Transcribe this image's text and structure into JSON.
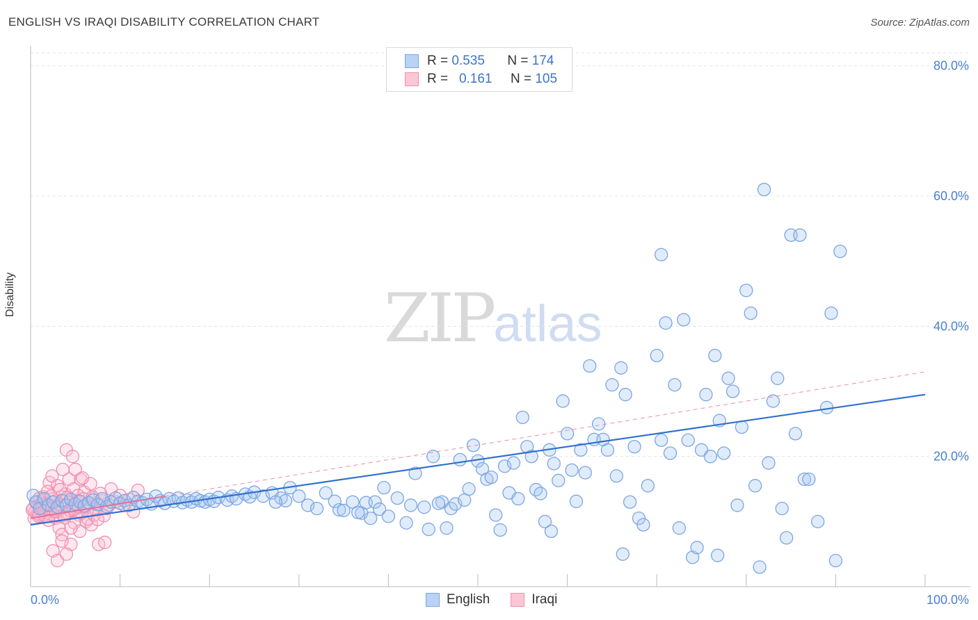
{
  "title": "ENGLISH VS IRAQI DISABILITY CORRELATION CHART",
  "source": "Source: ZipAtlas.com",
  "watermark": {
    "zip": "ZIP",
    "atlas": "atlas"
  },
  "legend_top": {
    "rows": [
      {
        "r_label": "R =",
        "r_value": "0.535",
        "n_label": "N =",
        "n_value": "174"
      },
      {
        "r_label": "R =",
        "r_value": "0.161",
        "n_label": "N =",
        "n_value": "105"
      }
    ]
  },
  "chart_data": {
    "type": "scatter",
    "title": "ENGLISH VS IRAQI DISABILITY CORRELATION CHART",
    "xlabel": "",
    "ylabel": "Disability",
    "xlim": [
      0,
      100
    ],
    "ylim": [
      0,
      82
    ],
    "x_tick_labels": [
      "0.0%",
      "100.0%"
    ],
    "y_ticks": [
      20,
      40,
      60,
      80
    ],
    "y_tick_labels": [
      "20.0%",
      "40.0%",
      "60.0%",
      "80.0%"
    ],
    "grid": "horizontal dashed",
    "legend_placement": "bottom-center",
    "colors": {
      "English": "#7aa5e3",
      "Iraqi": "#ef8fb0",
      "english_line": "#2f6fce",
      "iraqi_line": "#e4709a"
    },
    "series": [
      {
        "name": "English",
        "r": 0.535,
        "n": 174,
        "trend": {
          "x": [
            0,
            100
          ],
          "y": [
            9.5,
            29.5
          ]
        },
        "points": [
          [
            0.3,
            14
          ],
          [
            0.6,
            13
          ],
          [
            1.0,
            12
          ],
          [
            1.5,
            13.5
          ],
          [
            2.0,
            12.5
          ],
          [
            2.5,
            13
          ],
          [
            3.0,
            12.2
          ],
          [
            3.5,
            13.2
          ],
          [
            4.0,
            12.5
          ],
          [
            4.5,
            13.4
          ],
          [
            5.0,
            12.7
          ],
          [
            5.5,
            13.1
          ],
          [
            6.0,
            12.4
          ],
          [
            6.5,
            12.9
          ],
          [
            7.0,
            13.3
          ],
          [
            7.5,
            12.6
          ],
          [
            8.0,
            13.5
          ],
          [
            8.5,
            12.3
          ],
          [
            9.0,
            13.0
          ],
          [
            9.5,
            13.6
          ],
          [
            10.0,
            12.8
          ],
          [
            10.5,
            13.2
          ],
          [
            11.0,
            12.5
          ],
          [
            11.5,
            13.7
          ],
          [
            12.0,
            13.1
          ],
          [
            12.5,
            12.9
          ],
          [
            13.0,
            13.4
          ],
          [
            13.5,
            12.7
          ],
          [
            14.0,
            13.9
          ],
          [
            14.5,
            13.2
          ],
          [
            15.0,
            12.8
          ],
          [
            15.5,
            13.5
          ],
          [
            16.0,
            13.1
          ],
          [
            16.5,
            13.6
          ],
          [
            17.0,
            12.9
          ],
          [
            17.5,
            13.3
          ],
          [
            18.0,
            13.0
          ],
          [
            18.5,
            13.5
          ],
          [
            19.0,
            13.2
          ],
          [
            19.5,
            13.0
          ],
          [
            20.0,
            13.4
          ],
          [
            20.5,
            13.1
          ],
          [
            21.0,
            13.7
          ],
          [
            22.0,
            13.3
          ],
          [
            22.5,
            13.9
          ],
          [
            23.0,
            13.5
          ],
          [
            24.0,
            14.2
          ],
          [
            24.5,
            13.8
          ],
          [
            25.0,
            14.5
          ],
          [
            26.0,
            13.9
          ],
          [
            27.0,
            14.4
          ],
          [
            28.0,
            13.6
          ],
          [
            28.5,
            13.2
          ],
          [
            29.0,
            15.2
          ],
          [
            30.0,
            13.9
          ],
          [
            31.0,
            12.5
          ],
          [
            32.0,
            12.0
          ],
          [
            33.0,
            14.4
          ],
          [
            34.0,
            13.1
          ],
          [
            34.5,
            11.8
          ],
          [
            35.0,
            11.7
          ],
          [
            36.0,
            13.0
          ],
          [
            37.0,
            11.3
          ],
          [
            37.5,
            12.9
          ],
          [
            38.0,
            10.5
          ],
          [
            38.5,
            13.0
          ],
          [
            39.0,
            11.9
          ],
          [
            39.5,
            15.2
          ],
          [
            40.0,
            10.8
          ],
          [
            41.0,
            13.6
          ],
          [
            42.0,
            9.8
          ],
          [
            42.5,
            12.5
          ],
          [
            43.0,
            17.4
          ],
          [
            44.0,
            12.2
          ],
          [
            44.5,
            8.8
          ],
          [
            45.0,
            20.0
          ],
          [
            46.0,
            13.0
          ],
          [
            46.5,
            9.0
          ],
          [
            47.0,
            12.0
          ],
          [
            47.5,
            12.7
          ],
          [
            48.0,
            19.5
          ],
          [
            48.5,
            13.3
          ],
          [
            49.0,
            15.0
          ],
          [
            49.5,
            21.7
          ],
          [
            50.0,
            19.3
          ],
          [
            50.5,
            18.1
          ],
          [
            51.0,
            16.5
          ],
          [
            51.5,
            16.8
          ],
          [
            52.0,
            11.0
          ],
          [
            52.5,
            8.7
          ],
          [
            53.0,
            18.5
          ],
          [
            53.5,
            14.4
          ],
          [
            54.0,
            19.0
          ],
          [
            54.5,
            13.5
          ],
          [
            55.0,
            26.0
          ],
          [
            55.5,
            21.5
          ],
          [
            56.0,
            20.0
          ],
          [
            56.5,
            14.9
          ],
          [
            57.0,
            14.3
          ],
          [
            57.5,
            10.0
          ],
          [
            58.0,
            21.0
          ],
          [
            58.5,
            18.9
          ],
          [
            59.0,
            16.3
          ],
          [
            59.5,
            28.5
          ],
          [
            60.0,
            23.5
          ],
          [
            60.5,
            17.9
          ],
          [
            61.0,
            13.1
          ],
          [
            61.5,
            21.0
          ],
          [
            62.0,
            17.5
          ],
          [
            62.5,
            33.9
          ],
          [
            63.0,
            22.6
          ],
          [
            63.5,
            25.0
          ],
          [
            64.0,
            22.6
          ],
          [
            64.5,
            21.0
          ],
          [
            65.0,
            31.0
          ],
          [
            65.5,
            17.0
          ],
          [
            66.0,
            33.6
          ],
          [
            66.5,
            29.5
          ],
          [
            67.0,
            13.0
          ],
          [
            67.5,
            21.5
          ],
          [
            68.0,
            10.5
          ],
          [
            68.5,
            9.5
          ],
          [
            69.0,
            15.5
          ],
          [
            70.0,
            35.5
          ],
          [
            70.5,
            22.5
          ],
          [
            71.0,
            40.5
          ],
          [
            71.5,
            20.5
          ],
          [
            72.0,
            31.0
          ],
          [
            72.5,
            9.0
          ],
          [
            73.0,
            41.0
          ],
          [
            73.5,
            22.5
          ],
          [
            74.0,
            4.5
          ],
          [
            74.5,
            6.0
          ],
          [
            75.0,
            21.0
          ],
          [
            75.5,
            29.5
          ],
          [
            76.0,
            20.0
          ],
          [
            76.5,
            35.5
          ],
          [
            77.0,
            25.5
          ],
          [
            77.5,
            20.5
          ],
          [
            78.0,
            32.0
          ],
          [
            78.5,
            30.0
          ],
          [
            79.0,
            12.5
          ],
          [
            79.5,
            24.5
          ],
          [
            80.0,
            45.5
          ],
          [
            80.5,
            42.0
          ],
          [
            81.0,
            15.5
          ],
          [
            81.5,
            3.0
          ],
          [
            82.0,
            61.0
          ],
          [
            82.5,
            19.0
          ],
          [
            83.0,
            28.5
          ],
          [
            83.5,
            32.0
          ],
          [
            84.0,
            12.0
          ],
          [
            84.5,
            7.5
          ],
          [
            85.0,
            54.0
          ],
          [
            85.5,
            23.5
          ],
          [
            86.0,
            54.0
          ],
          [
            86.5,
            16.5
          ],
          [
            87.0,
            16.5
          ],
          [
            88.0,
            10.0
          ],
          [
            89.0,
            27.5
          ],
          [
            89.5,
            42.0
          ],
          [
            90.0,
            4.0
          ],
          [
            90.5,
            51.5
          ],
          [
            70.5,
            51.0
          ],
          [
            66.2,
            5.0
          ],
          [
            76.8,
            4.8
          ],
          [
            58.2,
            8.5
          ],
          [
            45.6,
            12.8
          ],
          [
            36.6,
            11.4
          ],
          [
            27.4,
            13.0
          ]
        ]
      },
      {
        "name": "Iraqi",
        "r": 0.161,
        "n": 105,
        "trend": {
          "x": [
            0,
            100
          ],
          "y": [
            10.5,
            33
          ]
        },
        "points": [
          [
            0.3,
            12
          ],
          [
            0.5,
            11.5
          ],
          [
            0.7,
            13
          ],
          [
            0.9,
            12.5
          ],
          [
            1.0,
            11
          ],
          [
            1.2,
            12.8
          ],
          [
            1.3,
            11.8
          ],
          [
            1.5,
            12.2
          ],
          [
            1.6,
            13.3
          ],
          [
            1.8,
            11.4
          ],
          [
            2.0,
            12.6
          ],
          [
            2.1,
            16.0
          ],
          [
            2.3,
            11.9
          ],
          [
            2.4,
            17.0
          ],
          [
            2.5,
            13.5
          ],
          [
            2.7,
            12.1
          ],
          [
            2.8,
            10.5
          ],
          [
            3.0,
            15.5
          ],
          [
            3.1,
            11.6
          ],
          [
            3.2,
            9.0
          ],
          [
            3.4,
            13.8
          ],
          [
            3.5,
            8.0
          ],
          [
            3.6,
            18.0
          ],
          [
            3.8,
            12.4
          ],
          [
            3.9,
            14.2
          ],
          [
            4.0,
            21.0
          ],
          [
            4.2,
            11.2
          ],
          [
            4.3,
            16.5
          ],
          [
            4.5,
            6.5
          ],
          [
            4.6,
            12.9
          ],
          [
            4.8,
            15.0
          ],
          [
            5.0,
            18.0
          ],
          [
            5.2,
            13.1
          ],
          [
            5.4,
            11.0
          ],
          [
            5.6,
            16.5
          ],
          [
            5.8,
            12.3
          ],
          [
            6.0,
            14.5
          ],
          [
            6.2,
            10.0
          ],
          [
            6.5,
            12.7
          ],
          [
            6.8,
            9.5
          ],
          [
            7.0,
            13.6
          ],
          [
            7.3,
            11.8
          ],
          [
            7.6,
            6.5
          ],
          [
            8.0,
            13.2
          ],
          [
            8.5,
            12.0
          ],
          [
            9.0,
            15.0
          ],
          [
            9.5,
            13.0
          ],
          [
            10.0,
            14.0
          ],
          [
            10.5,
            12.5
          ],
          [
            11.0,
            13.4
          ],
          [
            11.5,
            11.5
          ],
          [
            12.0,
            14.8
          ],
          [
            0.4,
            10.5
          ],
          [
            0.8,
            11.2
          ],
          [
            1.1,
            12.3
          ],
          [
            1.4,
            13.8
          ],
          [
            1.7,
            10.8
          ],
          [
            1.9,
            14.6
          ],
          [
            2.2,
            11.1
          ],
          [
            2.6,
            13.0
          ],
          [
            2.9,
            12.4
          ],
          [
            3.3,
            14.9
          ],
          [
            3.7,
            10.9
          ],
          [
            4.1,
            13.7
          ],
          [
            4.4,
            11.7
          ],
          [
            4.7,
            20.0
          ],
          [
            4.9,
            9.8
          ],
          [
            5.1,
            12.0
          ],
          [
            5.3,
            14.0
          ],
          [
            5.5,
            8.5
          ],
          [
            5.7,
            11.3
          ],
          [
            5.9,
            13.5
          ],
          [
            6.1,
            12.2
          ],
          [
            6.4,
            10.4
          ],
          [
            6.7,
            15.8
          ],
          [
            7.1,
            11.0
          ],
          [
            7.4,
            12.8
          ],
          [
            7.8,
            14.3
          ],
          [
            8.2,
            10.9
          ],
          [
            8.8,
            12.5
          ],
          [
            0.2,
            11.8
          ],
          [
            0.6,
            12.9
          ],
          [
            1.0,
            13.6
          ],
          [
            1.5,
            11.0
          ],
          [
            2.0,
            10.2
          ],
          [
            2.5,
            5.5
          ],
          [
            3.0,
            4.0
          ],
          [
            3.5,
            7.0
          ],
          [
            4.0,
            5.0
          ],
          [
            4.5,
            9.0
          ],
          [
            0.9,
            10.8
          ],
          [
            1.3,
            12.1
          ],
          [
            1.8,
            12.7
          ],
          [
            2.3,
            13.9
          ],
          [
            2.8,
            11.5
          ],
          [
            3.3,
            12.6
          ],
          [
            3.8,
            10.6
          ],
          [
            4.3,
            13.0
          ],
          [
            4.8,
            11.9
          ],
          [
            5.3,
            12.3
          ],
          [
            5.8,
            16.7
          ],
          [
            6.3,
            11.6
          ],
          [
            6.9,
            13.8
          ],
          [
            7.5,
            10.3
          ],
          [
            8.3,
            6.8
          ]
        ]
      }
    ]
  }
}
